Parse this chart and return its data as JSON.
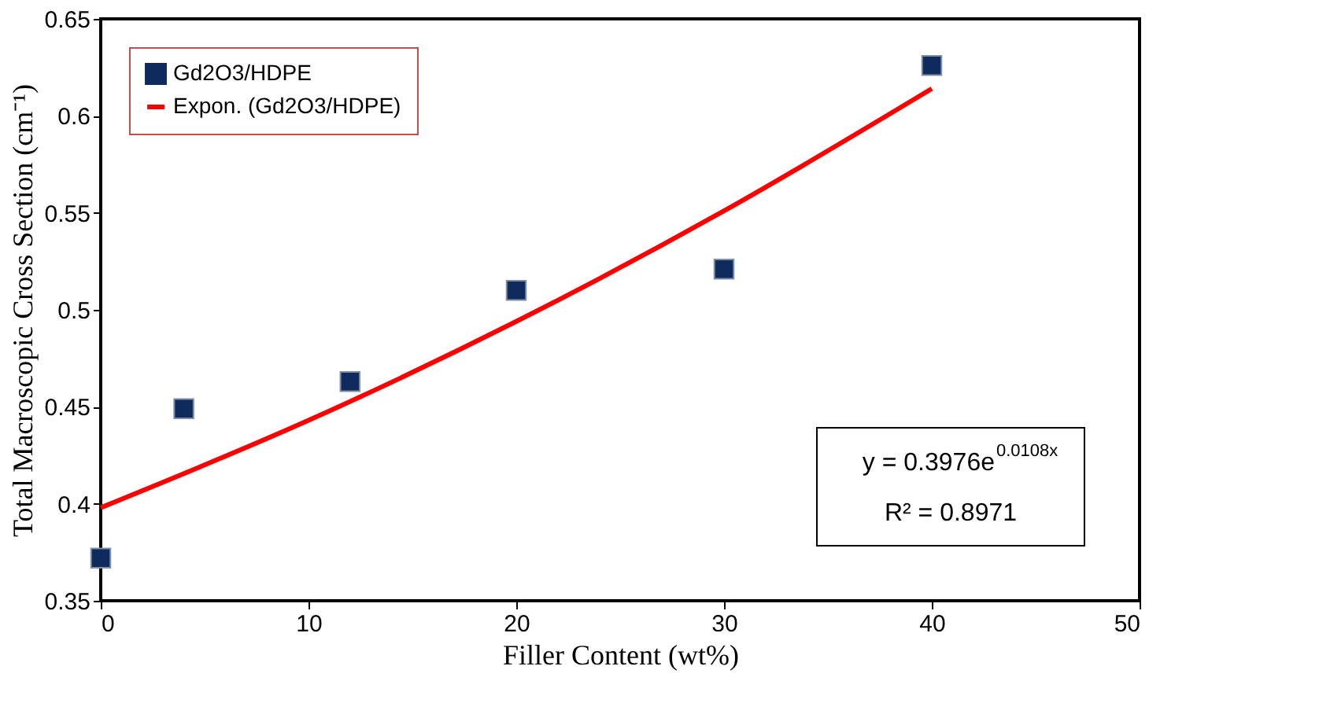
{
  "chart_data": {
    "type": "scatter",
    "xlabel": "Filler Content (wt%)",
    "ylabel": "Total Macroscopic Cross Section (cm⁻¹)",
    "xlim": [
      0,
      50
    ],
    "xticks": [
      0,
      10,
      20,
      30,
      40,
      50
    ],
    "ylim": [
      0.35,
      0.65
    ],
    "yticks": [
      0.35,
      0.4,
      0.45,
      0.5,
      0.55,
      0.6,
      0.65
    ],
    "grid": false,
    "legend": "top left",
    "marker": "square",
    "series": [
      {
        "name": "Gd2O3/HDPE",
        "color": "#0f2a5c",
        "x": [
          0,
          4,
          12,
          20,
          30,
          40
        ],
        "values": [
          0.372,
          0.449,
          0.463,
          0.51,
          0.521,
          0.626
        ]
      },
      {
        "name": "Expon. (Gd2O3/HDPE)",
        "type": "line",
        "marker": "none",
        "line_style": "solid",
        "color": "#ff0000",
        "x": [
          0,
          10,
          20,
          30,
          40
        ],
        "values": [
          0.398,
          0.443,
          0.494,
          0.551,
          0.614
        ]
      }
    ],
    "annotations": [
      "y = 0.3976e$^{0.0108x}$",
      "R² = 0.8971"
    ]
  }
}
